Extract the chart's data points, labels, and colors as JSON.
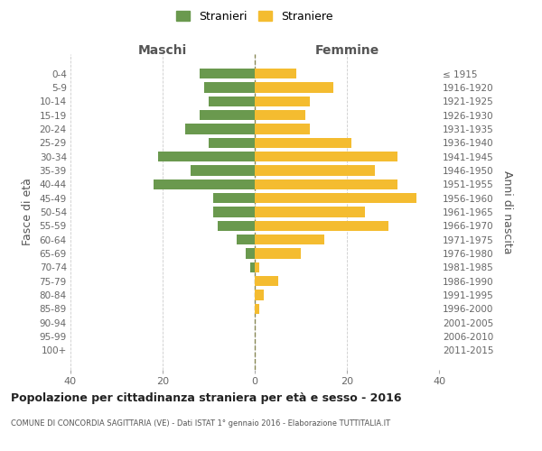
{
  "age_groups": [
    "0-4",
    "5-9",
    "10-14",
    "15-19",
    "20-24",
    "25-29",
    "30-34",
    "35-39",
    "40-44",
    "45-49",
    "50-54",
    "55-59",
    "60-64",
    "65-69",
    "70-74",
    "75-79",
    "80-84",
    "85-89",
    "90-94",
    "95-99",
    "100+"
  ],
  "birth_years": [
    "2011-2015",
    "2006-2010",
    "2001-2005",
    "1996-2000",
    "1991-1995",
    "1986-1990",
    "1981-1985",
    "1976-1980",
    "1971-1975",
    "1966-1970",
    "1961-1965",
    "1956-1960",
    "1951-1955",
    "1946-1950",
    "1941-1945",
    "1936-1940",
    "1931-1935",
    "1926-1930",
    "1921-1925",
    "1916-1920",
    "≤ 1915"
  ],
  "maschi": [
    12,
    11,
    10,
    12,
    15,
    10,
    21,
    14,
    22,
    9,
    9,
    8,
    4,
    2,
    1,
    0,
    0,
    0,
    0,
    0,
    0
  ],
  "femmine": [
    9,
    17,
    12,
    11,
    12,
    21,
    31,
    26,
    31,
    35,
    24,
    29,
    15,
    10,
    1,
    5,
    2,
    1,
    0,
    0,
    0
  ],
  "maschi_color": "#6a994e",
  "femmine_color": "#f4bc30",
  "background_color": "#ffffff",
  "grid_color": "#cccccc",
  "center_line_color": "#888855",
  "title": "Popolazione per cittadinanza straniera per età e sesso - 2016",
  "subtitle": "COMUNE DI CONCORDIA SAGITTARIA (VE) - Dati ISTAT 1° gennaio 2016 - Elaborazione TUTTITALIA.IT",
  "xlabel_left": "Maschi",
  "xlabel_right": "Femmine",
  "ylabel_left": "Fasce di età",
  "ylabel_right": "Anni di nascita",
  "legend_stranieri": "Stranieri",
  "legend_straniere": "Straniere",
  "xlim": 40,
  "bar_height": 0.75
}
